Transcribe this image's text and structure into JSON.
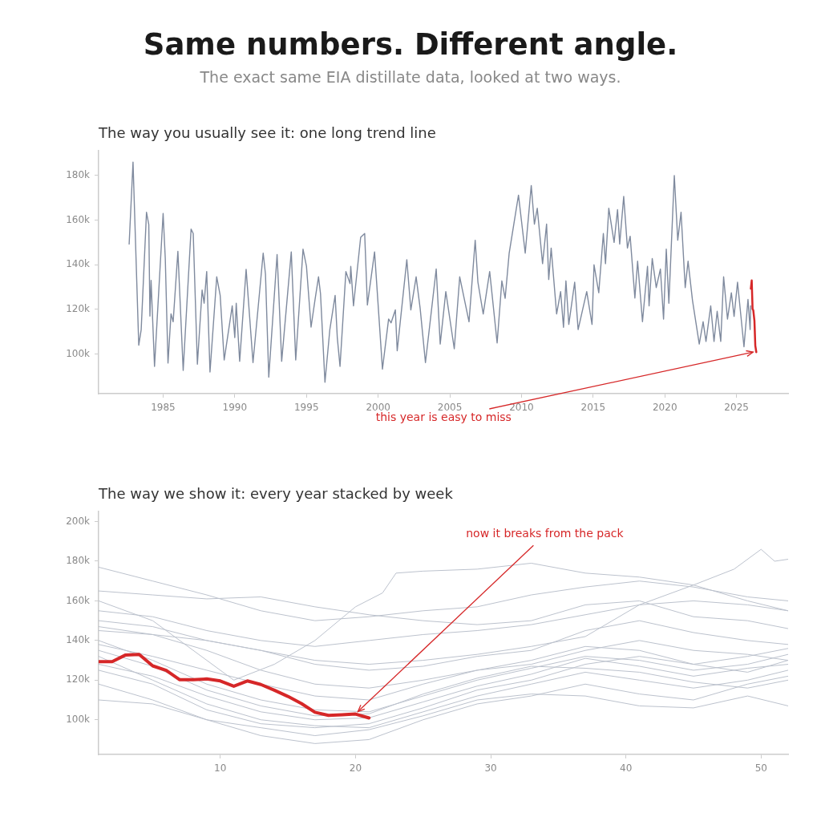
{
  "chart_data": [
    {
      "type": "other",
      "title": "Same numbers. Different angle.",
      "subtitle": "The exact same EIA distillate data, looked at two ways."
    },
    {
      "type": "line",
      "title": "The way you usually see it: one long trend line",
      "marker": "none",
      "xlim": [
        1980.5,
        2028.6
      ],
      "xticks": [
        1985,
        1990,
        1995,
        2000,
        2005,
        2010,
        2015,
        2020,
        2025
      ],
      "ylim": [
        82300,
        191000
      ],
      "yticks": [
        {
          "value": 100000,
          "label": "100k"
        },
        {
          "value": 120000,
          "label": "120k"
        },
        {
          "value": 140000,
          "label": "140k"
        },
        {
          "value": 160000,
          "label": "160k"
        },
        {
          "value": 180000,
          "label": "180k"
        }
      ],
      "series": [
        {
          "color": "#7f8a9e",
          "x": [
            1982.63,
            1982.9,
            1983.3,
            1983.47,
            1983.84,
            1984.0,
            1984.08,
            1984.16,
            1984.4,
            1985.0,
            1985.15,
            1985.34,
            1985.55,
            1985.7,
            1986.03,
            1986.4,
            1986.95,
            1987.1,
            1987.39,
            1987.72,
            1987.86,
            1988.04,
            1988.27,
            1988.74,
            1988.98,
            1989.26,
            1989.82,
            1990.0,
            1990.1,
            1990.34,
            1990.79,
            1991.27,
            1991.98,
            1992.14,
            1992.37,
            1992.95,
            1993.03,
            1993.27,
            1993.94,
            1994.25,
            1994.76,
            1995.0,
            1995.32,
            1995.6,
            1995.84,
            1995.98,
            1996.29,
            1996.63,
            1997.0,
            1997.15,
            1997.34,
            1997.75,
            1998.04,
            1998.09,
            1998.28,
            1998.78,
            1999.06,
            1999.25,
            1999.75,
            2000.3,
            2000.73,
            2000.9,
            2001.2,
            2001.33,
            2002.0,
            2002.28,
            2002.65,
            2002.93,
            2003.3,
            2004.05,
            2004.33,
            2004.72,
            2005.31,
            2005.69,
            2006.34,
            2006.77,
            2006.96,
            2007.33,
            2007.78,
            2008.3,
            2008.63,
            2008.86,
            2009.14,
            2009.79,
            2010.26,
            2010.68,
            2010.9,
            2011.1,
            2011.47,
            2011.75,
            2011.9,
            2012.07,
            2012.45,
            2012.73,
            2012.93,
            2013.1,
            2013.3,
            2013.71,
            2013.95,
            2014.55,
            2014.92,
            2015.06,
            2015.39,
            2015.71,
            2015.86,
            2016.09,
            2016.46,
            2016.7,
            2016.85,
            2017.13,
            2017.39,
            2017.58,
            2017.91,
            2018.1,
            2018.44,
            2018.79,
            2018.9,
            2019.12,
            2019.4,
            2019.69,
            2019.91,
            2020.1,
            2020.28,
            2020.66,
            2020.9,
            2021.13,
            2021.42,
            2021.62,
            2021.93,
            2022.4,
            2022.67,
            2022.87,
            2023.2,
            2023.43,
            2023.65,
            2023.9,
            2024.1,
            2024.37,
            2024.64,
            2024.83,
            2025.07,
            2025.52,
            2025.8,
            2025.95,
            2025.99
          ],
          "values": [
            149300,
            186000,
            104000,
            111000,
            163500,
            158000,
            117000,
            133000,
            94500,
            163000,
            143000,
            96000,
            118000,
            114500,
            146000,
            92700,
            156000,
            154000,
            95500,
            128700,
            122800,
            137000,
            92000,
            134600,
            126300,
            97400,
            121600,
            107400,
            122800,
            96800,
            138000,
            96200,
            145200,
            135800,
            89700,
            144600,
            133400,
            96800,
            145800,
            97400,
            147000,
            139300,
            112100,
            124500,
            134600,
            127000,
            87400,
            111000,
            126300,
            107400,
            94500,
            137000,
            131600,
            139300,
            121600,
            152300,
            154000,
            122000,
            145800,
            93300,
            115700,
            114000,
            119800,
            101500,
            142300,
            119800,
            134600,
            120500,
            96200,
            138100,
            104500,
            128000,
            102400,
            134600,
            114500,
            151000,
            132200,
            118000,
            137000,
            105000,
            132800,
            125000,
            145200,
            171200,
            145200,
            175500,
            158200,
            165300,
            140500,
            158200,
            133400,
            147500,
            118000,
            128000,
            112000,
            132800,
            113300,
            132200,
            111000,
            128000,
            113300,
            140000,
            127500,
            154000,
            140500,
            165300,
            150000,
            164700,
            149300,
            170600,
            147500,
            152800,
            125100,
            141600,
            114500,
            139300,
            121600,
            142800,
            129800,
            138100,
            115700,
            147000,
            122800,
            180000,
            151000,
            163500,
            129800,
            141600,
            124000,
            104500,
            114500,
            105700,
            121600,
            105700,
            119200,
            105700,
            134600,
            115700,
            127500,
            116900,
            132200,
            103300,
            124500,
            111000,
            121600
          ]
        },
        {
          "color": "#d62728",
          "x": [
            2026.0,
            2026.06,
            2026.12,
            2026.17,
            2026.25,
            2026.31,
            2026.38
          ],
          "values": [
            129300,
            133000,
            120200,
            119600,
            114900,
            103800,
            100900
          ]
        }
      ],
      "annotations": [
        {
          "text": "this year is easy to miss",
          "x": 2026.38,
          "y": 100900
        }
      ]
    },
    {
      "type": "line",
      "title": "The way we show it: every year stacked by week",
      "marker": "none",
      "xlim": [
        1,
        52
      ],
      "xticks": [
        10,
        20,
        30,
        40,
        50
      ],
      "ylim": [
        82500,
        205000
      ],
      "yticks": [
        {
          "value": 100000,
          "label": "100k"
        },
        {
          "value": 120000,
          "label": "120k"
        },
        {
          "value": 140000,
          "label": "140k"
        },
        {
          "value": 160000,
          "label": "160k"
        },
        {
          "value": 180000,
          "label": "180k"
        },
        {
          "value": 200000,
          "label": "200k"
        }
      ],
      "series": [
        {
          "color": "#bcc2cd",
          "x": [
            1,
            5,
            9,
            11,
            14,
            17,
            20,
            22,
            23,
            25,
            29,
            33,
            37,
            41,
            45,
            49,
            52
          ],
          "values": [
            160000,
            150000,
            130000,
            120000,
            128000,
            140000,
            157000,
            164000,
            174000,
            175000,
            176000,
            179000,
            174000,
            172000,
            168000,
            160000,
            155000
          ]
        },
        {
          "color": "#bcc2cd",
          "x": [
            1,
            5,
            9,
            13,
            17,
            21,
            25,
            29,
            33,
            37,
            41,
            45,
            48,
            50,
            51,
            52
          ],
          "values": [
            150000,
            147000,
            140000,
            135000,
            130000,
            128000,
            130000,
            133000,
            137000,
            142000,
            158000,
            168000,
            176000,
            186000,
            180000,
            181000
          ]
        },
        {
          "color": "#bcc2cd",
          "x": [
            1,
            5,
            9,
            13,
            17,
            21,
            25,
            29,
            33,
            37,
            41,
            45,
            49,
            52
          ],
          "values": [
            165000,
            163000,
            161000,
            162000,
            157000,
            153000,
            150000,
            148000,
            150000,
            158000,
            160000,
            152000,
            150000,
            146000
          ]
        },
        {
          "color": "#bcc2cd",
          "x": [
            1,
            5,
            9,
            13,
            17,
            21,
            25,
            29,
            33,
            37,
            41,
            45,
            49,
            52
          ],
          "values": [
            177000,
            170000,
            163000,
            155000,
            150000,
            152000,
            155000,
            157000,
            163000,
            167000,
            170000,
            167000,
            162000,
            160000
          ]
        },
        {
          "color": "#bcc2cd",
          "x": [
            1,
            5,
            9,
            13,
            17,
            21,
            25,
            29,
            33,
            37,
            41,
            45,
            49,
            52
          ],
          "values": [
            145000,
            143000,
            140000,
            135000,
            128000,
            125000,
            127000,
            132000,
            135000,
            145000,
            150000,
            144000,
            140000,
            138000
          ]
        },
        {
          "color": "#bcc2cd",
          "x": [
            1,
            5,
            9,
            13,
            17,
            21,
            25,
            29,
            33,
            37,
            41,
            45,
            49,
            52
          ],
          "values": [
            140000,
            130000,
            118000,
            110000,
            105000,
            104000,
            112000,
            120000,
            126000,
            132000,
            130000,
            125000,
            128000,
            133000
          ]
        },
        {
          "color": "#bcc2cd",
          "x": [
            1,
            5,
            9,
            13,
            17,
            21,
            25,
            29,
            33,
            37,
            41,
            45,
            49,
            52
          ],
          "values": [
            132000,
            120000,
            108000,
            100000,
            97000,
            96000,
            104000,
            112000,
            118000,
            124000,
            120000,
            116000,
            120000,
            125000
          ]
        },
        {
          "color": "#bcc2cd",
          "x": [
            1,
            5,
            9,
            13,
            17,
            21,
            25,
            29,
            33,
            37,
            41,
            45,
            49,
            52
          ],
          "values": [
            125000,
            118000,
            105000,
            98000,
            96000,
            98000,
            106000,
            115000,
            120000,
            128000,
            132000,
            128000,
            124000,
            130000
          ]
        },
        {
          "color": "#bcc2cd",
          "x": [
            1,
            5,
            9,
            13,
            17,
            21,
            25,
            29,
            33,
            37,
            41,
            45,
            49,
            52
          ],
          "values": [
            118000,
            110000,
            100000,
            92000,
            88000,
            90000,
            100000,
            108000,
            112000,
            118000,
            113000,
            110000,
            118000,
            122000
          ]
        },
        {
          "color": "#bcc2cd",
          "x": [
            1,
            5,
            9,
            13,
            17,
            21,
            25,
            29,
            33,
            37,
            41,
            45,
            49,
            52
          ],
          "values": [
            110000,
            108000,
            100000,
            96000,
            92000,
            95000,
            102000,
            110000,
            113000,
            112000,
            107000,
            106000,
            112000,
            107000
          ]
        },
        {
          "color": "#bcc2cd",
          "x": [
            1,
            5,
            9,
            13,
            17,
            21,
            25,
            29,
            33,
            37,
            41,
            45,
            49,
            52
          ],
          "values": [
            138000,
            132000,
            125000,
            118000,
            112000,
            110000,
            118000,
            125000,
            128000,
            135000,
            140000,
            135000,
            133000,
            130000
          ]
        },
        {
          "color": "#bcc2cd",
          "x": [
            1,
            5,
            9,
            13,
            17,
            21,
            25,
            29,
            33,
            37,
            41,
            45,
            49,
            52
          ],
          "values": [
            155000,
            152000,
            145000,
            140000,
            137000,
            140000,
            143000,
            145000,
            148000,
            153000,
            158000,
            160000,
            158000,
            155000
          ]
        },
        {
          "color": "#bcc2cd",
          "x": [
            1,
            5,
            9,
            13,
            17,
            21,
            25,
            29,
            33,
            37,
            41,
            45,
            49,
            52
          ],
          "values": [
            147000,
            143000,
            135000,
            125000,
            118000,
            116000,
            120000,
            125000,
            130000,
            137000,
            135000,
            128000,
            132000,
            136000
          ]
        },
        {
          "color": "#bcc2cd",
          "x": [
            1,
            5,
            9,
            13,
            17,
            21,
            25,
            29,
            33,
            37,
            41,
            45,
            49,
            52
          ],
          "values": [
            128000,
            122000,
            112000,
            104000,
            100000,
            101000,
            109000,
            117000,
            123000,
            131000,
            127000,
            122000,
            126000,
            128000
          ]
        },
        {
          "color": "#bcc2cd",
          "x": [
            1,
            5,
            9,
            13,
            17,
            21,
            25,
            29,
            33,
            37,
            41,
            45,
            49,
            52
          ],
          "values": [
            135000,
            127000,
            115000,
            107000,
            102000,
            103000,
            113000,
            121000,
            127000,
            126000,
            124000,
            119000,
            116000,
            120000
          ]
        },
        {
          "color": "#d62728",
          "x": [
            1,
            2,
            3,
            4,
            5,
            6,
            7,
            8,
            9,
            10,
            11,
            12,
            13,
            14,
            15,
            16,
            17,
            18,
            19,
            20,
            21
          ],
          "values": [
            129300,
            129300,
            132700,
            133000,
            127200,
            124900,
            120200,
            120200,
            120600,
            119600,
            116900,
            119600,
            117800,
            114900,
            111800,
            108200,
            103800,
            102200,
            102500,
            102900,
            100900
          ]
        }
      ],
      "annotations": [
        {
          "text": "now it breaks from the pack",
          "x": 20,
          "y": 102900
        }
      ]
    }
  ]
}
